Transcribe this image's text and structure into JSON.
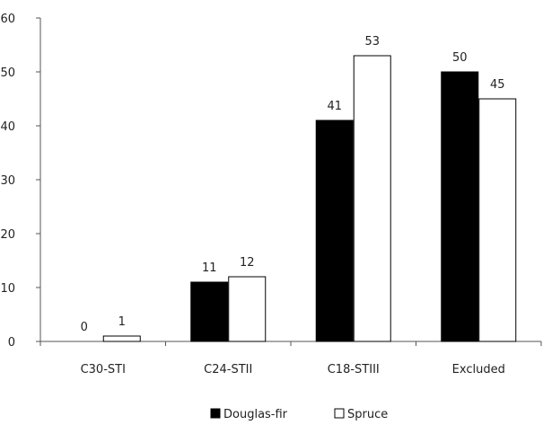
{
  "chart_data": {
    "type": "bar",
    "title": "",
    "xlabel": "",
    "ylabel": "",
    "categories": [
      "C30-STI",
      "C24-STII",
      "C18-STIII",
      "Excluded"
    ],
    "series": [
      {
        "name": "Douglas-fir",
        "values": [
          0,
          11,
          41,
          50
        ],
        "color": "#000000"
      },
      {
        "name": "Spruce",
        "values": [
          1,
          12,
          53,
          45
        ],
        "color": "#ffffff"
      }
    ],
    "ylim": [
      0,
      60
    ],
    "yticks": [
      0,
      10,
      20,
      30,
      40,
      50,
      60
    ],
    "grid": false,
    "legend_position": "bottom",
    "data_labels": true,
    "bar_outline_color": "#000000"
  }
}
